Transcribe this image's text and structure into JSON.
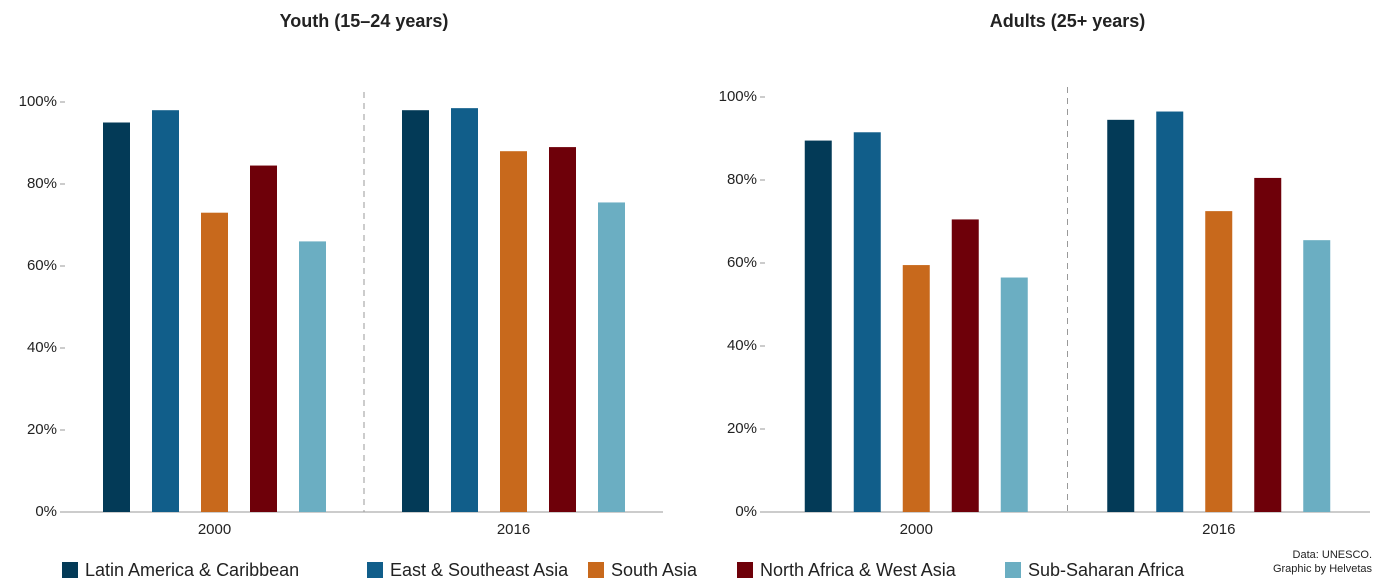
{
  "chart_data": [
    {
      "type": "bar",
      "title": "Youth (15–24 years)",
      "categories": [
        "2000",
        "2016"
      ],
      "series": [
        {
          "name": "Latin America & Caribbean",
          "color": "#033a57",
          "values": [
            95,
            98
          ]
        },
        {
          "name": "East & Southeast Asia",
          "color": "#115e8a",
          "values": [
            98,
            98.5
          ]
        },
        {
          "name": "South Asia",
          "color": "#c8691c",
          "values": [
            73,
            88
          ]
        },
        {
          "name": "North Africa & West Asia",
          "color": "#6e0009",
          "values": [
            84.5,
            89
          ]
        },
        {
          "name": "Sub-Saharan Africa",
          "color": "#6baec2",
          "values": [
            66,
            75.5
          ]
        }
      ],
      "ylim": [
        0,
        100
      ],
      "yticks": [
        {
          "value": 0,
          "label": "0%"
        },
        {
          "value": 20,
          "label": "20%"
        },
        {
          "value": 40,
          "label": "40%"
        },
        {
          "value": 60,
          "label": "60%"
        },
        {
          "value": 80,
          "label": "80%"
        },
        {
          "value": 100,
          "label": "100%"
        }
      ],
      "grid": false
    },
    {
      "type": "bar",
      "title": "Adults (25+ years)",
      "categories": [
        "2000",
        "2016"
      ],
      "series": [
        {
          "name": "Latin America & Caribbean",
          "color": "#033a57",
          "values": [
            89.5,
            94.5
          ]
        },
        {
          "name": "East & Southeast Asia",
          "color": "#115e8a",
          "values": [
            91.5,
            96.5
          ]
        },
        {
          "name": "South Asia",
          "color": "#c8691c",
          "values": [
            59.5,
            72.5
          ]
        },
        {
          "name": "North Africa & West Asia",
          "color": "#6e0009",
          "values": [
            70.5,
            80.5
          ]
        },
        {
          "name": "Sub-Saharan Africa",
          "color": "#6baec2",
          "values": [
            56.5,
            65.5
          ]
        }
      ],
      "ylim": [
        0,
        100
      ],
      "yticks": [
        {
          "value": 0,
          "label": "0%"
        },
        {
          "value": 20,
          "label": "20%"
        },
        {
          "value": 40,
          "label": "40%"
        },
        {
          "value": 60,
          "label": "60%"
        },
        {
          "value": 80,
          "label": "80%"
        },
        {
          "value": 100,
          "label": "100%"
        }
      ],
      "grid": false
    }
  ],
  "credits": [
    "Data: UNESCO.",
    "Graphic by Helvetas"
  ]
}
